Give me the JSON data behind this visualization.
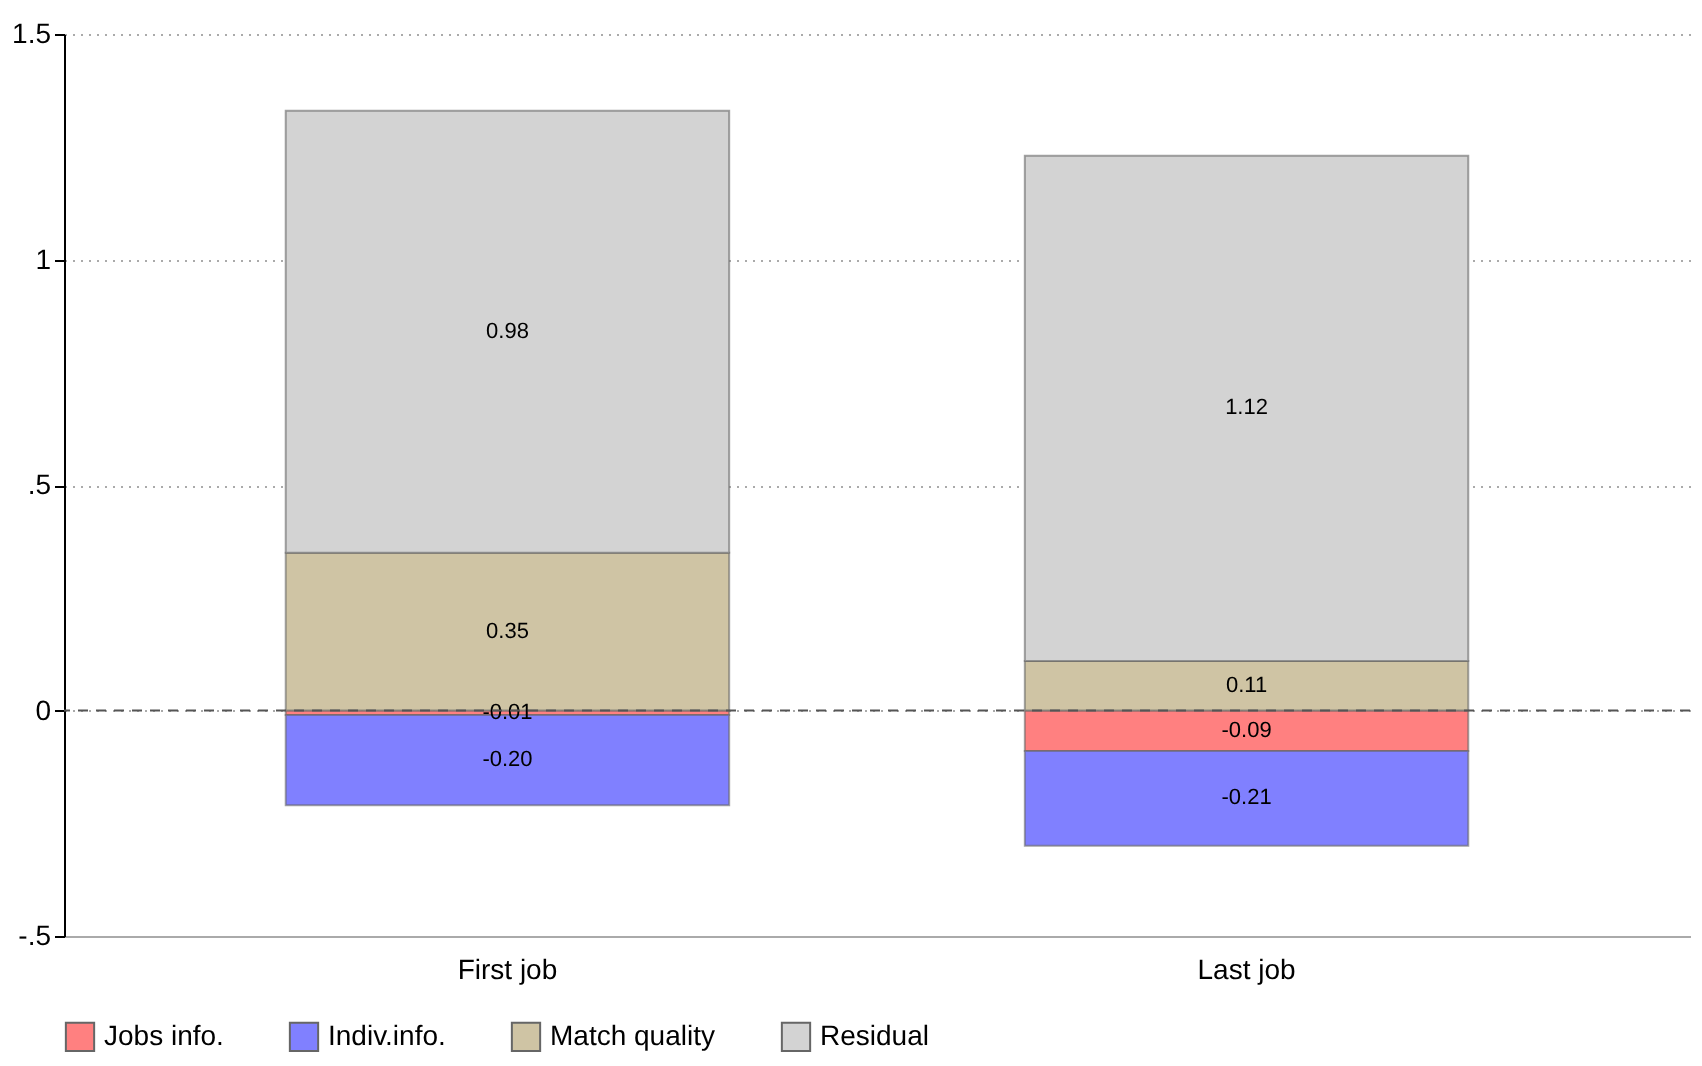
{
  "chart_data": {
    "type": "bar",
    "stacked": true,
    "categories": [
      "First job",
      "Last job"
    ],
    "series": [
      {
        "name": "Jobs info.",
        "color": "#ff8080",
        "values": [
          -0.01,
          -0.09
        ],
        "value_labels": [
          "-0.01",
          "-0.09"
        ]
      },
      {
        "name": "Indiv.info.",
        "color": "#8080ff",
        "values": [
          -0.2,
          -0.21
        ],
        "value_labels": [
          "-0.20",
          "-0.21"
        ]
      },
      {
        "name": "Match quality",
        "color": "#cfc4a4",
        "values": [
          0.35,
          0.11
        ],
        "value_labels": [
          "0.35",
          "0.11"
        ]
      },
      {
        "name": "Residual",
        "color": "#d3d3d3",
        "values": [
          0.98,
          1.12
        ],
        "value_labels": [
          "0.98",
          "1.12"
        ]
      }
    ],
    "ylim": [
      -0.5,
      1.5
    ],
    "yticks": [
      {
        "value": -0.5,
        "label": "-.5"
      },
      0,
      {
        "value": 0.5,
        "label": ".5"
      },
      1,
      {
        "value": 1.5,
        "label": "1.5"
      }
    ],
    "grid": "y",
    "legend": "bottom",
    "ref_lines": [
      {
        "axis": "y",
        "value": 0,
        "line_style": "dashed",
        "color": "#555555"
      }
    ]
  }
}
